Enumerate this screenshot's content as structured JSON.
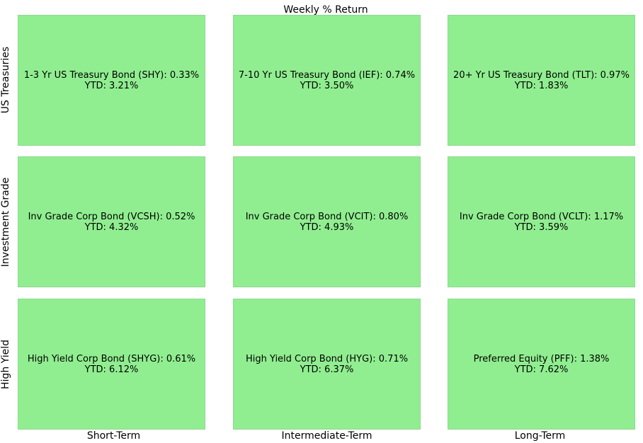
{
  "chart_data": {
    "type": "table",
    "title": "Weekly % Return",
    "row_labels": [
      "US Treasuries",
      "Investment Grade",
      "High Yield"
    ],
    "column_labels": [
      "Short-Term",
      "Intermediate-Term",
      "Long-Term"
    ],
    "tile_color": "#90ee90",
    "cells": [
      [
        {
          "name": "1-3 Yr US Treasury Bond (SHY)",
          "weekly_return_pct": 0.33,
          "ytd_pct": 3.21,
          "line1": "1-3 Yr US Treasury Bond (SHY): 0.33%",
          "line2": "YTD: 3.21%"
        },
        {
          "name": "7-10 Yr US Treasury Bond (IEF)",
          "weekly_return_pct": 0.74,
          "ytd_pct": 3.5,
          "line1": "7-10 Yr US Treasury Bond (IEF): 0.74%",
          "line2": "YTD: 3.50%"
        },
        {
          "name": "20+ Yr US Treasury Bond (TLT)",
          "weekly_return_pct": 0.97,
          "ytd_pct": 1.83,
          "line1": "20+ Yr US Treasury Bond (TLT): 0.97%",
          "line2": "YTD: 1.83%"
        }
      ],
      [
        {
          "name": "Inv Grade Corp Bond (VCSH)",
          "weekly_return_pct": 0.52,
          "ytd_pct": 4.32,
          "line1": "Inv Grade Corp Bond (VCSH): 0.52%",
          "line2": "YTD: 4.32%"
        },
        {
          "name": "Inv Grade Corp Bond (VCIT)",
          "weekly_return_pct": 0.8,
          "ytd_pct": 4.93,
          "line1": "Inv Grade Corp Bond (VCIT): 0.80%",
          "line2": "YTD: 4.93%"
        },
        {
          "name": "Inv Grade Corp Bond (VCLT)",
          "weekly_return_pct": 1.17,
          "ytd_pct": 3.59,
          "line1": "Inv Grade Corp Bond (VCLT): 1.17%",
          "line2": "YTD: 3.59%"
        }
      ],
      [
        {
          "name": "High Yield Corp Bond (SHYG)",
          "weekly_return_pct": 0.61,
          "ytd_pct": 6.12,
          "line1": "High Yield Corp Bond (SHYG): 0.61%",
          "line2": "YTD: 6.12%"
        },
        {
          "name": "High Yield Corp Bond (HYG)",
          "weekly_return_pct": 0.71,
          "ytd_pct": 6.37,
          "line1": "High Yield Corp Bond (HYG): 0.71%",
          "line2": "YTD: 6.37%"
        },
        {
          "name": "Preferred Equity (PFF)",
          "weekly_return_pct": 1.38,
          "ytd_pct": 7.62,
          "line1": "Preferred Equity (PFF): 1.38%",
          "line2": "YTD: 7.62%"
        }
      ]
    ]
  }
}
